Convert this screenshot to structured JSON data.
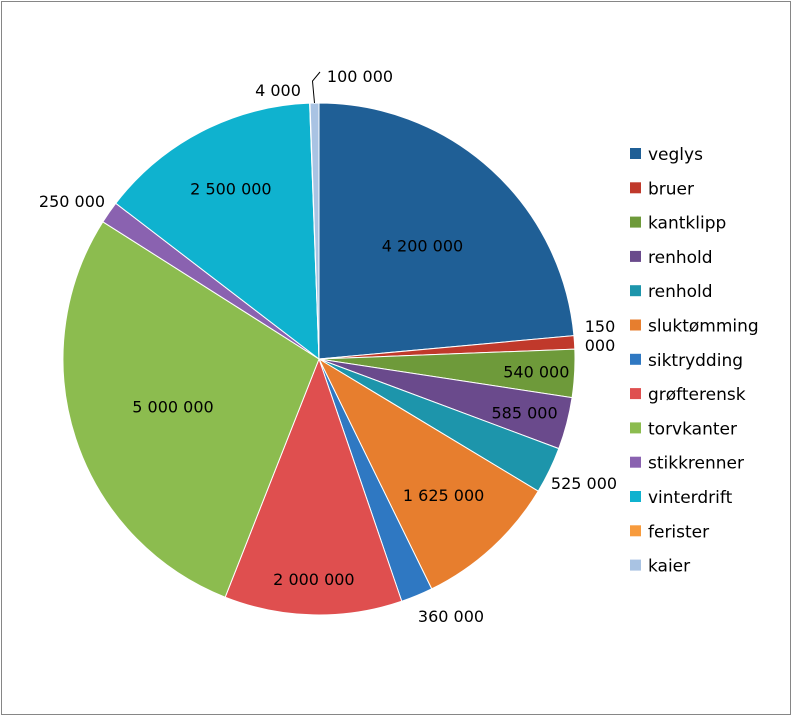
{
  "chart_data": {
    "type": "pie",
    "title": "",
    "legend_position": "right",
    "series": [
      {
        "name": "veglys",
        "value": 4200000,
        "label": "4 200 000",
        "color": "#1f5f96"
      },
      {
        "name": "bruer",
        "value": 150000,
        "label": "150 000",
        "color": "#c0392b"
      },
      {
        "name": "kantklipp",
        "value": 540000,
        "label": "540 000",
        "color": "#6e9a3a"
      },
      {
        "name": "renhold",
        "value": 585000,
        "label": "585 000",
        "color": "#6a4a8c"
      },
      {
        "name": "renhold",
        "value": 525000,
        "label": "525 000",
        "color": "#1d95ab"
      },
      {
        "name": "sluktømming",
        "value": 1625000,
        "label": "1 625 000",
        "color": "#e77e2e"
      },
      {
        "name": "siktrydding",
        "value": 360000,
        "label": "360 000",
        "color": "#2f78c2"
      },
      {
        "name": "grøfterensk",
        "value": 2000000,
        "label": "2 000 000",
        "color": "#df4f4f"
      },
      {
        "name": "torvkanter",
        "value": 5000000,
        "label": "5 000 000",
        "color": "#8cbc4f"
      },
      {
        "name": "stikkrenner",
        "value": 250000,
        "label": "250 000",
        "color": "#8a62b0"
      },
      {
        "name": "vinterdrift",
        "value": 2500000,
        "label": "2 500 000",
        "color": "#0fb2cf"
      },
      {
        "name": "ferister",
        "value": 4000,
        "label": "4 000",
        "color": "#f79b3d"
      },
      {
        "name": "kaier",
        "value": 100000,
        "label": "100 000",
        "color": "#a9c3e3"
      }
    ]
  }
}
